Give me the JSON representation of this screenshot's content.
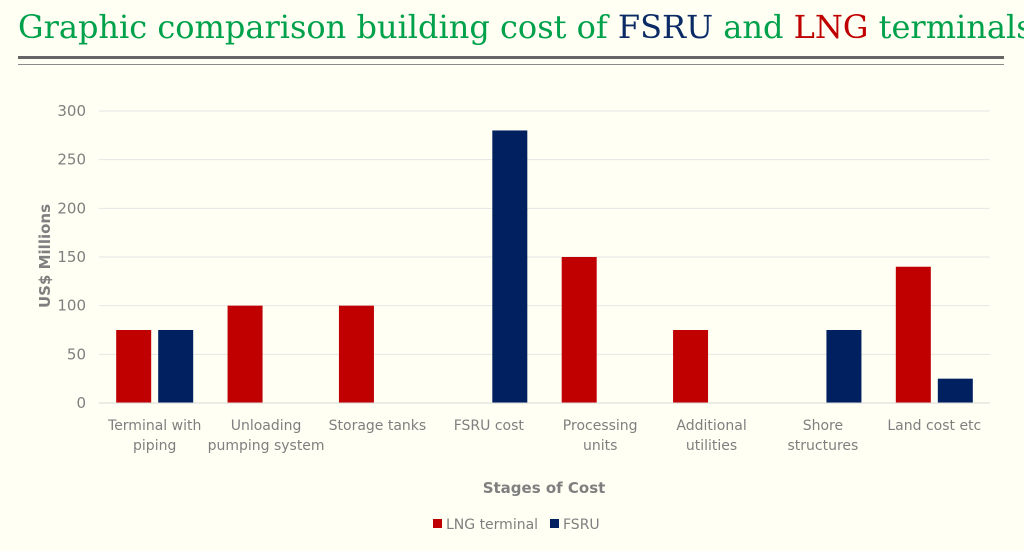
{
  "title": {
    "part1": "Graphic comparison building cost of ",
    "part2": "FSRU",
    "part3": " and ",
    "part4": "LNG",
    "part5": " terminals",
    "color_main": "#00a14b",
    "color_fsru": "#0b2b66",
    "color_lng": "#c00000"
  },
  "chart_data": {
    "type": "bar",
    "title": "",
    "xlabel": "Stages of Cost",
    "ylabel": "US$ Millions",
    "ylim": [
      0,
      300
    ],
    "yticks": [
      0,
      50,
      100,
      150,
      200,
      250,
      300
    ],
    "grid": true,
    "legend_position": "bottom",
    "categories": [
      "Terminal with piping",
      "Unloading pumping system",
      "Storage tanks",
      "FSRU cost",
      "Processing units",
      "Additional utilities",
      "Shore structures",
      "Land cost etc"
    ],
    "series": [
      {
        "name": "LNG terminal",
        "color": "#c00000",
        "values": [
          75,
          100,
          100,
          0,
          150,
          75,
          0,
          140
        ]
      },
      {
        "name": "FSRU",
        "color": "#002060",
        "values": [
          75,
          0,
          0,
          280,
          0,
          0,
          75,
          25
        ]
      }
    ]
  }
}
